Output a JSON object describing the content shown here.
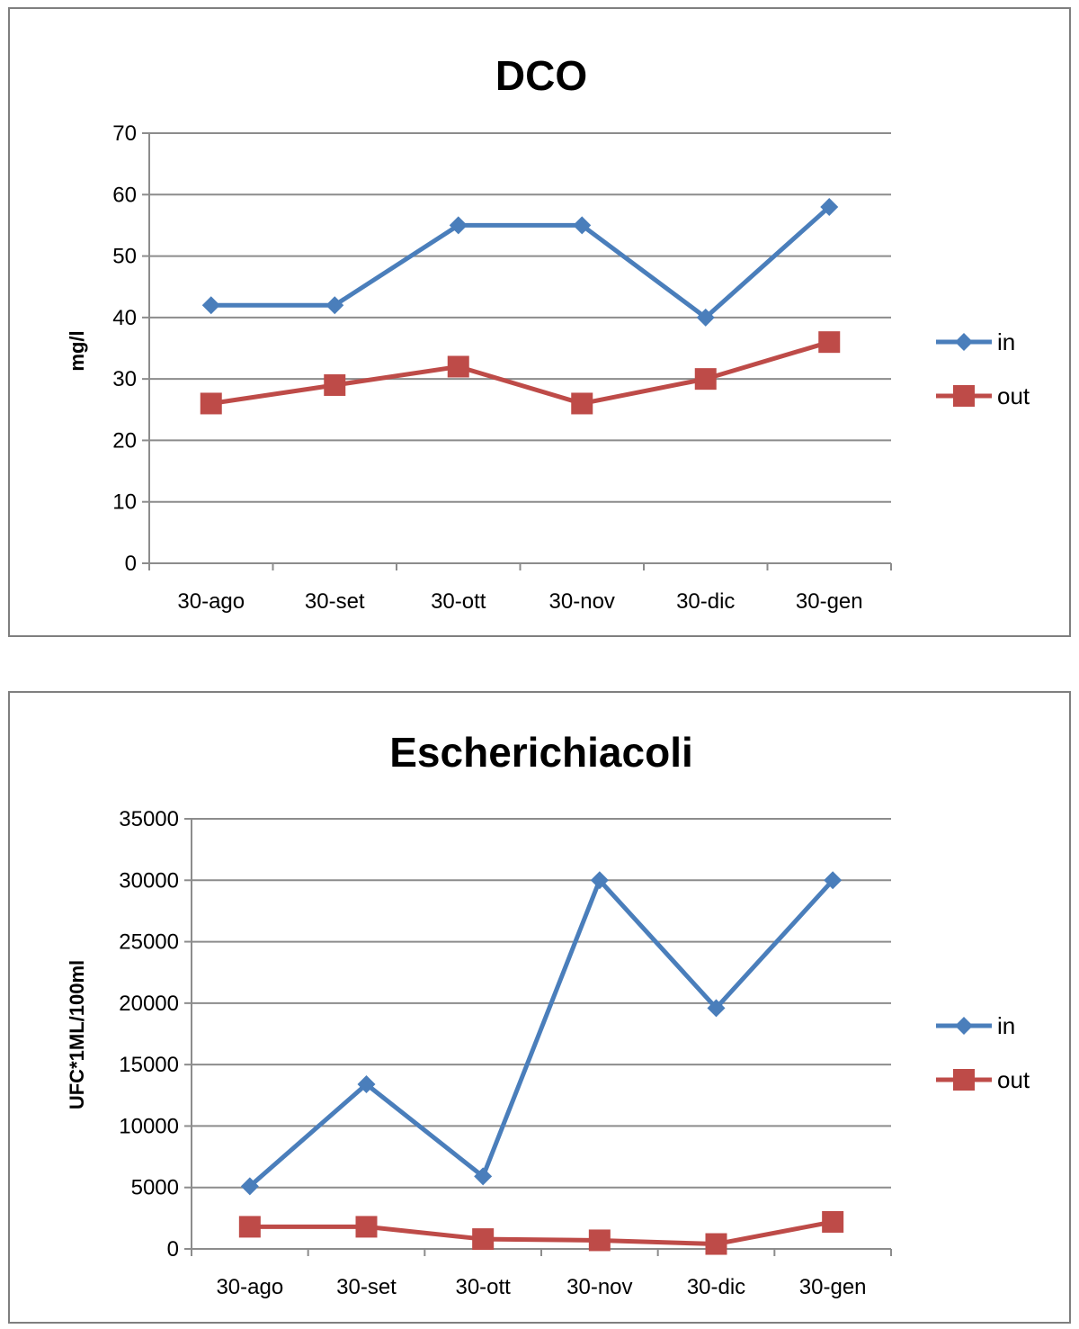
{
  "chart_data": [
    {
      "type": "line",
      "title": "DCO",
      "xlabel": "",
      "ylabel": "mg/l",
      "categories": [
        "30-ago",
        "30-set",
        "30-ott",
        "30-nov",
        "30-dic",
        "30-gen"
      ],
      "ylim": [
        0,
        70
      ],
      "yticks": [
        "0",
        "10",
        "20",
        "30",
        "40",
        "50",
        "60",
        "70"
      ],
      "grid": true,
      "legend": "right",
      "series": [
        {
          "name": "in",
          "values": [
            42,
            42,
            55,
            55,
            40,
            58
          ],
          "color": "#4a7ebb",
          "marker": "diamond"
        },
        {
          "name": "out",
          "values": [
            26,
            29,
            32,
            26,
            30,
            36
          ],
          "color": "#be4b48",
          "marker": "square"
        }
      ]
    },
    {
      "type": "line",
      "title": "Escherichiacoli",
      "xlabel": "",
      "ylabel": "UFC*1ML/100ml",
      "categories": [
        "30-ago",
        "30-set",
        "30-ott",
        "30-nov",
        "30-dic",
        "30-gen"
      ],
      "ylim": [
        0,
        35000
      ],
      "yticks": [
        "0",
        "5000",
        "10000",
        "15000",
        "20000",
        "25000",
        "30000",
        "35000"
      ],
      "grid": true,
      "legend": "right",
      "series": [
        {
          "name": "in",
          "values": [
            5100,
            13400,
            5900,
            30000,
            19600,
            30000
          ],
          "color": "#4a7ebb",
          "marker": "diamond"
        },
        {
          "name": "out",
          "values": [
            1800,
            1800,
            800,
            700,
            400,
            2200
          ],
          "color": "#be4b48",
          "marker": "square"
        }
      ]
    }
  ]
}
